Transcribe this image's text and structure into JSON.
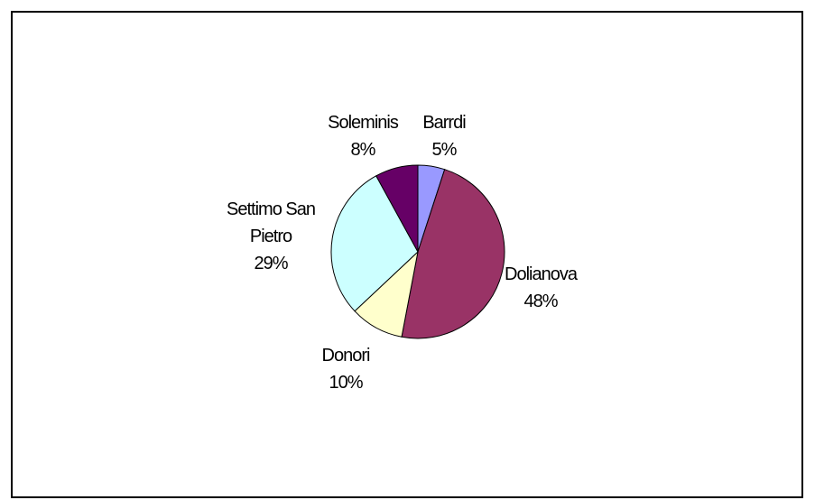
{
  "chart_data": {
    "type": "pie",
    "title": "",
    "start_angle_deg": 0,
    "direction": "clockwise",
    "slices": [
      {
        "name": "Barrdi",
        "percent_label": "5%",
        "value": 5,
        "color": "#9999FF"
      },
      {
        "name": "Dolianova",
        "percent_label": "48%",
        "value": 48,
        "color": "#993366"
      },
      {
        "name": "Donori",
        "percent_label": "10%",
        "value": 10,
        "color": "#FFFFCC"
      },
      {
        "name": "Settimo San Pietro",
        "percent_label": "29%",
        "value": 29,
        "color": "#CCFFFF"
      },
      {
        "name": "Soleminis",
        "percent_label": "8%",
        "value": 8,
        "color": "#660066"
      }
    ]
  }
}
